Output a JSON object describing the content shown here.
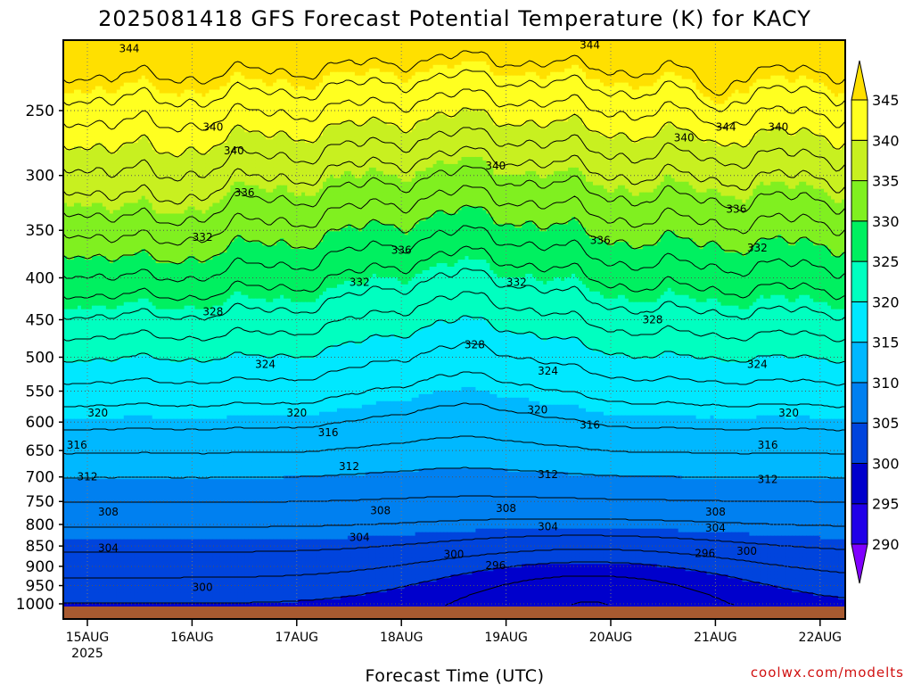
{
  "chart_data": {
    "type": "heatmap",
    "title": "2025081418 GFS Forecast Potential Temperature (K) for KACY",
    "xlabel": "Forecast Time (UTC)",
    "ylabel": "",
    "x_ticks": [
      "15AUG",
      "16AUG",
      "17AUG",
      "18AUG",
      "19AUG",
      "20AUG",
      "21AUG",
      "22AUG"
    ],
    "x_tick_sublabel": "2025",
    "y_ticks": [
      250,
      300,
      350,
      400,
      450,
      500,
      550,
      600,
      650,
      700,
      750,
      800,
      850,
      900,
      950,
      1000
    ],
    "y_scale": "log-pressure",
    "ylim": [
      1000,
      200
    ],
    "grid": true,
    "colorbar": {
      "levels": [
        290,
        295,
        300,
        305,
        310,
        315,
        320,
        325,
        330,
        335,
        340,
        345
      ],
      "colors": [
        "#8000ff",
        "#2000e8",
        "#0000cc",
        "#0044dd",
        "#0080f0",
        "#00b8ff",
        "#00e8ff",
        "#00ffc0",
        "#00f060",
        "#80f020",
        "#c8f020",
        "#ffff20",
        "#ffe000"
      ],
      "extend": "both"
    },
    "contour_labels": [
      {
        "x": "15AUG+0.40",
        "p": 210,
        "value": 344
      },
      {
        "x": "18AUG+1.80",
        "p": 208,
        "value": 344
      },
      {
        "x": "20AUG+1.10",
        "p": 262,
        "value": 344
      },
      {
        "x": "15AUG+1.20",
        "p": 262,
        "value": 340
      },
      {
        "x": "16AUG+0.40",
        "p": 280,
        "value": 340
      },
      {
        "x": "18AUG+0.90",
        "p": 292,
        "value": 340
      },
      {
        "x": "20AUG+0.70",
        "p": 270,
        "value": 340
      },
      {
        "x": "21AUG+0.60",
        "p": 262,
        "value": 340
      },
      {
        "x": "15AUG+1.50",
        "p": 315,
        "value": 336
      },
      {
        "x": "17AUG+1.00",
        "p": 370,
        "value": 336
      },
      {
        "x": "19AUG+0.90",
        "p": 360,
        "value": 336
      },
      {
        "x": "21AUG+0.20",
        "p": 330,
        "value": 336
      },
      {
        "x": "15AUG+1.10",
        "p": 357,
        "value": 332
      },
      {
        "x": "16AUG+1.60",
        "p": 405,
        "value": 332
      },
      {
        "x": "19AUG+0.10",
        "p": 405,
        "value": 332
      },
      {
        "x": "21AUG+0.40",
        "p": 368,
        "value": 332
      },
      {
        "x": "14AUG+0.70",
        "p": 440,
        "value": 328
      },
      {
        "x": "16AUG+0.20",
        "p": 440,
        "value": 328
      },
      {
        "x": "18AUG+0.70",
        "p": 483,
        "value": 328
      },
      {
        "x": "20AUG+0.40",
        "p": 450,
        "value": 328
      },
      {
        "x": "16AUG+0.70",
        "p": 510,
        "value": 324
      },
      {
        "x": "18AUG+1.40",
        "p": 520,
        "value": 324
      },
      {
        "x": "21AUG+0.40",
        "p": 510,
        "value": 324
      },
      {
        "x": "15AUG+0.10",
        "p": 585,
        "value": 320
      },
      {
        "x": "17AUG+0.00",
        "p": 585,
        "value": 320
      },
      {
        "x": "19AUG+0.30",
        "p": 580,
        "value": 320
      },
      {
        "x": "21AUG+0.70",
        "p": 585,
        "value": 320
      },
      {
        "x": "14AUG+0.90",
        "p": 640,
        "value": 316
      },
      {
        "x": "16AUG+1.30",
        "p": 618,
        "value": 316
      },
      {
        "x": "18AUG+1.80",
        "p": 605,
        "value": 316
      },
      {
        "x": "21AUG+0.50",
        "p": 640,
        "value": 316
      },
      {
        "x": "14AUG+1.00",
        "p": 700,
        "value": 312
      },
      {
        "x": "16AUG+1.50",
        "p": 680,
        "value": 312
      },
      {
        "x": "18AUG+1.40",
        "p": 695,
        "value": 312
      },
      {
        "x": "21AUG+0.50",
        "p": 705,
        "value": 312
      },
      {
        "x": "15AUG+0.20",
        "p": 772,
        "value": 308
      },
      {
        "x": "16AUG+1.80",
        "p": 770,
        "value": 308
      },
      {
        "x": "19AUG+0.00",
        "p": 765,
        "value": 308
      },
      {
        "x": "20AUG+1.00",
        "p": 772,
        "value": 308
      },
      {
        "x": "15AUG+0.20",
        "p": 855,
        "value": 304
      },
      {
        "x": "16AUG+1.60",
        "p": 830,
        "value": 304
      },
      {
        "x": "18AUG+1.40",
        "p": 805,
        "value": 304
      },
      {
        "x": "21AUG+0.00",
        "p": 808,
        "value": 304
      },
      {
        "x": "15AUG+1.10",
        "p": 955,
        "value": 300
      },
      {
        "x": "17AUG+1.50",
        "p": 870,
        "value": 300
      },
      {
        "x": "20AUG+1.30",
        "p": 862,
        "value": 300
      },
      {
        "x": "18AUG+0.90",
        "p": 898,
        "value": 296
      },
      {
        "x": "20AUG+0.90",
        "p": 868,
        "value": 296
      }
    ]
  },
  "credit": "coolwx.com/modelts"
}
